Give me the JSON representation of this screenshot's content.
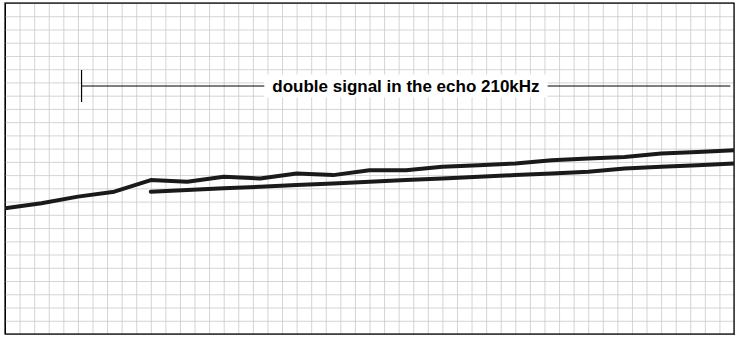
{
  "chart_data": {
    "type": "line",
    "annotation": "double signal in the echo 210kHz",
    "annotation_x": [
      10.5,
      99.5
    ],
    "x": [
      0,
      5,
      10,
      15,
      20,
      25,
      30,
      35,
      40,
      45,
      50,
      55,
      60,
      65,
      70,
      75,
      80,
      85,
      90,
      95,
      100
    ],
    "series": [
      {
        "color": "#1a1a1a",
        "values": [
          38,
          39.5,
          41.5,
          43,
          46.5,
          46,
          47.5,
          47,
          48.5,
          48,
          49.5,
          49.5,
          50.5,
          51,
          51.5,
          52.5,
          53,
          53.5,
          54.5,
          55,
          55.5
        ]
      },
      {
        "color": "#1a1a1a",
        "values": [
          null,
          null,
          null,
          null,
          43,
          43.5,
          44,
          44.5,
          45,
          45.5,
          46,
          46.5,
          47,
          47.5,
          48,
          48.5,
          49,
          50,
          50.5,
          51,
          51.5
        ]
      }
    ],
    "xlim": [
      0,
      100
    ],
    "ylim": [
      0,
      100
    ],
    "xticks": [
      0,
      2,
      4,
      6,
      8,
      10,
      12,
      14,
      16,
      18,
      20,
      22,
      24,
      26,
      28,
      30,
      32,
      34,
      36,
      38,
      40,
      42,
      44,
      46,
      48,
      50,
      52,
      54,
      56,
      58,
      60,
      62,
      64,
      66,
      68,
      70,
      72,
      74,
      76,
      78,
      80,
      82,
      84,
      86,
      88,
      90,
      92,
      94,
      96,
      98,
      100
    ],
    "yticks": [
      0,
      4,
      8,
      12,
      16,
      20,
      24,
      28,
      32,
      36,
      40,
      44,
      48,
      52,
      56,
      60,
      64,
      68,
      72,
      76,
      80,
      84,
      88,
      92,
      96,
      100
    ],
    "grid": true,
    "tick_labels": false
  }
}
